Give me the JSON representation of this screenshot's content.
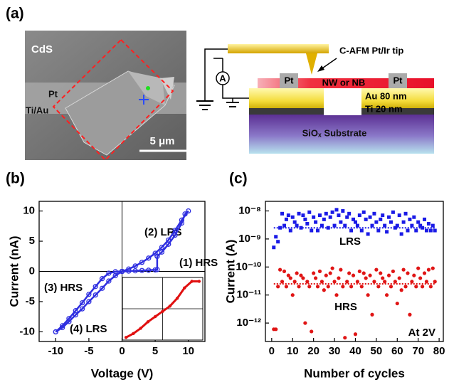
{
  "figure": {
    "panel_labels": [
      "(a)",
      "(b)",
      "(c)"
    ],
    "sem": {
      "material": "CdS",
      "top_electrode": "Pt",
      "bottom_electrode": "Ti/Au",
      "scale_bar": "5 μm"
    },
    "schematic": {
      "tip": "C-AFM Pt/Ir tip",
      "ammeter": "A",
      "left_contact": "Pt",
      "right_contact": "Pt",
      "nanostructure": "NW or NB",
      "au_layer": "Au 80 nm",
      "ti_layer": "Ti 20 nm",
      "substrate": "SiOₓ Substrate"
    }
  },
  "chart_data": [
    {
      "type": "line",
      "x_label": "Voltage (V)",
      "y_label": "Current (nA)",
      "xlim": [
        -12.5,
        12.5
      ],
      "xticks": [
        -10,
        -5,
        0,
        5,
        10
      ],
      "ylim": [
        -11.6,
        11.6
      ],
      "yticks": [
        -10,
        -5,
        0,
        5,
        10
      ],
      "marker": "open-circle",
      "series": [
        {
          "color": "#2f2fe0",
          "x": [
            0,
            1,
            2,
            3,
            4,
            5,
            5.3,
            5.3
          ],
          "values": [
            0,
            0.05,
            0.1,
            0.15,
            0.2,
            0.25,
            0.3,
            2.5
          ]
        },
        {
          "color": "#2f2fe0",
          "x": [
            5.3,
            6,
            7,
            8,
            9,
            9.5,
            10,
            9,
            8,
            7,
            6,
            5,
            4,
            3,
            2,
            1,
            0
          ],
          "values": [
            2.5,
            3.2,
            4.5,
            6,
            8,
            9.5,
            10,
            8.5,
            6.8,
            5.2,
            4,
            3,
            2.2,
            1.5,
            0.9,
            0.4,
            0
          ]
        },
        {
          "color": "#2f2fe0",
          "x": [
            0,
            -1,
            -2,
            -3,
            -4,
            -5,
            -6,
            -7,
            -8,
            -9,
            -10
          ],
          "values": [
            0,
            -0.05,
            -0.3,
            -1.2,
            -2.5,
            -3.8,
            -5.2,
            -6.5,
            -7.8,
            -9,
            -10
          ]
        },
        {
          "color": "#2f2fe0",
          "x": [
            -10,
            -9,
            -8,
            -7,
            -6,
            -5,
            -4,
            -3,
            -2,
            -1,
            0
          ],
          "values": [
            -10,
            -9.3,
            -8.3,
            -7.2,
            -6.2,
            -5,
            -3.9,
            -2.8,
            -1.6,
            -0.7,
            0
          ]
        }
      ],
      "annotations": [
        "(1) HRS",
        "(2) LRS",
        "(3) HRS",
        "(4) LRS"
      ],
      "inset": {
        "color": "#e01010",
        "xlim": [
          -11,
          11
        ],
        "ylim": [
          -12,
          12
        ],
        "x": [
          -10,
          -8,
          -6,
          -4,
          -2,
          0,
          2,
          4,
          6,
          8,
          10
        ],
        "values": [
          -11,
          -9.5,
          -7.5,
          -5,
          -3,
          -1,
          1,
          4,
          8,
          10.5,
          10.5
        ]
      }
    },
    {
      "type": "scatter",
      "x_label": "Number of cycles",
      "y_label": "Current (A)",
      "log_y": true,
      "xlim": [
        -3,
        82
      ],
      "xticks": [
        0,
        10,
        20,
        30,
        40,
        50,
        60,
        70,
        80
      ],
      "ylim": [
        2.2e-13,
        2.2e-08
      ],
      "yticks": [
        {
          "value": 1e-12,
          "label": "10⁻¹²"
        },
        {
          "value": 1e-11,
          "label": "10⁻¹¹"
        },
        {
          "value": 1e-10,
          "label": "10⁻¹⁰"
        },
        {
          "value": 1e-09,
          "label": "10⁻⁹"
        },
        {
          "value": 1e-08,
          "label": "10⁻⁸"
        }
      ],
      "x": [
        1,
        2,
        3,
        4,
        5,
        6,
        7,
        8,
        9,
        10,
        11,
        12,
        13,
        14,
        15,
        16,
        17,
        18,
        19,
        20,
        21,
        22,
        23,
        24,
        25,
        26,
        27,
        28,
        29,
        30,
        31,
        32,
        33,
        34,
        35,
        36,
        37,
        38,
        39,
        40,
        41,
        42,
        43,
        44,
        45,
        46,
        47,
        48,
        49,
        50,
        51,
        52,
        53,
        54,
        55,
        56,
        57,
        58,
        59,
        60,
        61,
        62,
        63,
        64,
        65,
        66,
        67,
        68,
        69,
        70,
        71,
        72,
        73,
        74,
        75,
        76,
        77,
        78
      ],
      "series": [
        {
          "name": "LRS",
          "color": "#1a1ae6",
          "marker": "square",
          "values": [
            5e-10,
            1.2e-09,
            8e-10,
            2.5e-09,
            8e-09,
            3e-09,
            5e-09,
            7e-09,
            2e-09,
            6e-09,
            4e-09,
            3e-09,
            8e-09,
            2.5e-09,
            7e-09,
            5e-09,
            3.5e-09,
            9e-09,
            2e-09,
            6e-09,
            4e-09,
            2e-09,
            7e-09,
            3e-09,
            5e-09,
            8e-09,
            2.5e-09,
            6e-09,
            9e-09,
            3e-09,
            1.1e-08,
            7e-09,
            4e-09,
            1e-08,
            3e-09,
            6e-09,
            8e-09,
            2e-09,
            5e-09,
            4e-09,
            3e-09,
            7e-09,
            2e-09,
            9e-09,
            5e-09,
            1.5e-09,
            6e-09,
            3e-09,
            8e-09,
            4e-09,
            2e-09,
            5e-09,
            7e-09,
            3e-09,
            1.8e-09,
            6e-09,
            4e-09,
            9e-09,
            2.5e-09,
            3e-09,
            7e-09,
            1.5e-09,
            4e-09,
            8e-09,
            2e-09,
            5e-09,
            3e-09,
            6e-09,
            2e-09,
            4e-09,
            3e-09,
            2.5e-09,
            5e-09,
            2e-09,
            3.5e-09,
            2e-09,
            3e-09,
            2e-09
          ]
        },
        {
          "name": "HRS",
          "color": "#e01515",
          "marker": "circle",
          "values": [
            6e-13,
            6e-13,
            2e-11,
            8e-11,
            3e-11,
            7e-11,
            2e-11,
            5e-11,
            4e-11,
            1e-11,
            3e-11,
            6e-11,
            2e-11,
            5e-11,
            4e-11,
            1e-12,
            3e-11,
            2e-11,
            5e-13,
            6e-11,
            4e-11,
            2e-11,
            7e-11,
            3e-11,
            1.5e-11,
            5e-11,
            2e-11,
            6e-11,
            9e-11,
            3e-11,
            1e-11,
            4e-11,
            8e-11,
            2e-11,
            3e-13,
            3e-11,
            6e-11,
            2e-11,
            5e-11,
            4e-13,
            3e-11,
            7e-11,
            2e-11,
            6e-11,
            4e-11,
            1e-11,
            5e-11,
            2e-12,
            3e-11,
            8e-11,
            2e-11,
            6e-11,
            4e-11,
            3e-11,
            1e-11,
            5e-11,
            2e-11,
            7e-11,
            3e-11,
            5e-12,
            4e-11,
            1.5e-11,
            8e-11,
            2e-11,
            6e-11,
            2e-12,
            3e-11,
            5e-11,
            2e-11,
            9e-11,
            4e-11,
            2e-11,
            6e-11,
            3e-11,
            8e-11,
            2e-11,
            9e-11,
            3e-11
          ]
        }
      ],
      "reference_lines": [
        {
          "value": 2.5e-09,
          "color": "#1a1ae6"
        },
        {
          "value": 2.5e-11,
          "color": "#e01515"
        }
      ],
      "annotations": [
        "At 2V"
      ]
    }
  ]
}
